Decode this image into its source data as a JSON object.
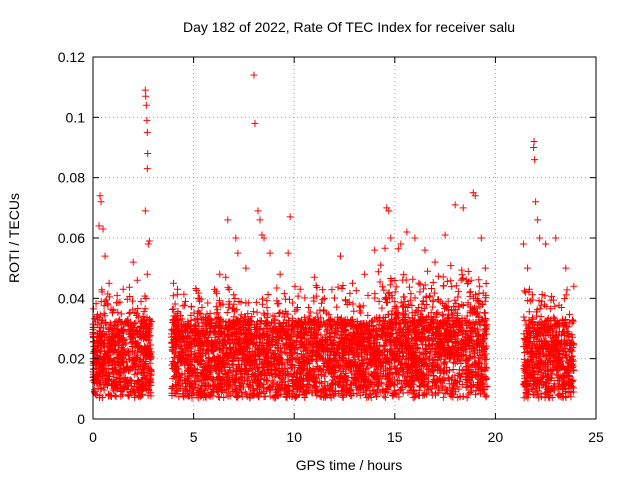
{
  "chart_data": {
    "type": "scatter",
    "title": "Day 182 of 2022, Rate Of TEC Index for receiver salu",
    "xlabel": "GPS time / hours",
    "ylabel": "ROTI / TECUs",
    "xlim": [
      0,
      25
    ],
    "ylim": [
      0,
      0.12
    ],
    "xticks": [
      "0",
      "5",
      "10",
      "15",
      "20",
      "25"
    ],
    "yticks": [
      "0",
      "0.02",
      "0.04",
      "0.06",
      "0.08",
      "0.1",
      "0.12"
    ],
    "grid": true,
    "marker": "+",
    "color": "#ff0000",
    "series": [
      {
        "points_note": "dense ROTI samples; representative values listed",
        "points": [
          [
            0.2,
            0.022
          ],
          [
            0.3,
            0.064
          ],
          [
            0.35,
            0.074
          ],
          [
            0.4,
            0.072
          ],
          [
            0.5,
            0.063
          ],
          [
            0.6,
            0.054
          ],
          [
            0.8,
            0.045
          ],
          [
            1.0,
            0.03
          ],
          [
            1.2,
            0.041
          ],
          [
            1.5,
            0.043
          ],
          [
            1.8,
            0.035
          ],
          [
            2.0,
            0.052
          ],
          [
            2.2,
            0.046
          ],
          [
            2.6,
            0.109
          ],
          [
            2.62,
            0.107
          ],
          [
            2.65,
            0.104
          ],
          [
            2.68,
            0.099
          ],
          [
            2.7,
            0.095
          ],
          [
            2.72,
            0.088
          ],
          [
            2.7,
            0.083
          ],
          [
            2.6,
            0.069
          ],
          [
            2.8,
            0.059
          ],
          [
            2.75,
            0.058
          ],
          [
            2.7,
            0.048
          ],
          [
            4.0,
            0.045
          ],
          [
            4.2,
            0.043
          ],
          [
            4.6,
            0.039
          ],
          [
            5.2,
            0.035
          ],
          [
            5.8,
            0.031
          ],
          [
            6.3,
            0.048
          ],
          [
            6.6,
            0.047
          ],
          [
            6.7,
            0.066
          ],
          [
            7.1,
            0.06
          ],
          [
            7.2,
            0.055
          ],
          [
            7.6,
            0.05
          ],
          [
            8.0,
            0.114
          ],
          [
            8.05,
            0.098
          ],
          [
            8.2,
            0.069
          ],
          [
            8.3,
            0.066
          ],
          [
            8.4,
            0.061
          ],
          [
            8.5,
            0.06
          ],
          [
            8.8,
            0.055
          ],
          [
            9.3,
            0.048
          ],
          [
            9.7,
            0.055
          ],
          [
            9.8,
            0.067
          ],
          [
            10.3,
            0.043
          ],
          [
            11.0,
            0.047
          ],
          [
            11.5,
            0.04
          ],
          [
            12.3,
            0.054
          ],
          [
            12.9,
            0.045
          ],
          [
            13.5,
            0.048
          ],
          [
            14.0,
            0.056
          ],
          [
            14.3,
            0.051
          ],
          [
            14.6,
            0.07
          ],
          [
            14.7,
            0.069
          ],
          [
            14.8,
            0.06
          ],
          [
            15.3,
            0.058
          ],
          [
            15.6,
            0.062
          ],
          [
            16.0,
            0.06
          ],
          [
            16.5,
            0.056
          ],
          [
            17.0,
            0.052
          ],
          [
            17.5,
            0.061
          ],
          [
            18.0,
            0.071
          ],
          [
            18.4,
            0.07
          ],
          [
            18.9,
            0.075
          ],
          [
            19.0,
            0.074
          ],
          [
            19.3,
            0.06
          ],
          [
            19.5,
            0.05
          ],
          [
            21.4,
            0.058
          ],
          [
            21.6,
            0.05
          ],
          [
            21.9,
            0.09
          ],
          [
            21.92,
            0.092
          ],
          [
            21.95,
            0.086
          ],
          [
            22.0,
            0.072
          ],
          [
            22.1,
            0.066
          ],
          [
            22.2,
            0.06
          ],
          [
            22.5,
            0.058
          ],
          [
            23.0,
            0.06
          ],
          [
            23.5,
            0.05
          ],
          [
            23.9,
            0.044
          ]
        ]
      }
    ]
  }
}
